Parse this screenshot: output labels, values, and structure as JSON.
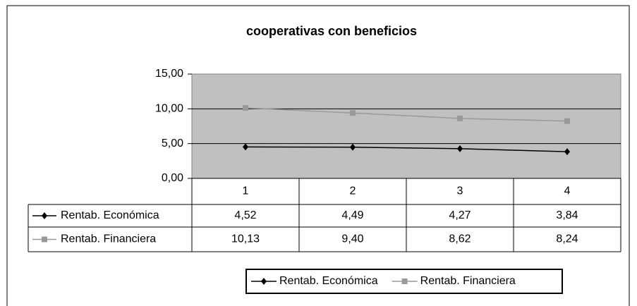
{
  "chart_data": {
    "type": "line",
    "title": "cooperativas con beneficios",
    "categories": [
      "1",
      "2",
      "3",
      "4"
    ],
    "series": [
      {
        "name": "Rentab. Económica",
        "color": "#000000",
        "marker": "diamond",
        "values": [
          4.52,
          4.49,
          4.27,
          3.84
        ],
        "value_labels": [
          "4,52",
          "4,49",
          "4,27",
          "3,84"
        ]
      },
      {
        "name": "Rentab. Financiera",
        "color": "#999999",
        "marker": "square",
        "values": [
          10.13,
          9.4,
          8.62,
          8.24
        ],
        "value_labels": [
          "10,13",
          "9,40",
          "8,62",
          "8,24"
        ]
      }
    ],
    "ylim": [
      0,
      15
    ],
    "yticks": [
      {
        "value": 0,
        "label": "0,00"
      },
      {
        "value": 5,
        "label": "5,00"
      },
      {
        "value": 10,
        "label": "10,00"
      },
      {
        "value": 15,
        "label": "15,00"
      }
    ],
    "grid": true,
    "plot_background": "#c0c0c0",
    "data_table": true,
    "legend": "bottom"
  }
}
